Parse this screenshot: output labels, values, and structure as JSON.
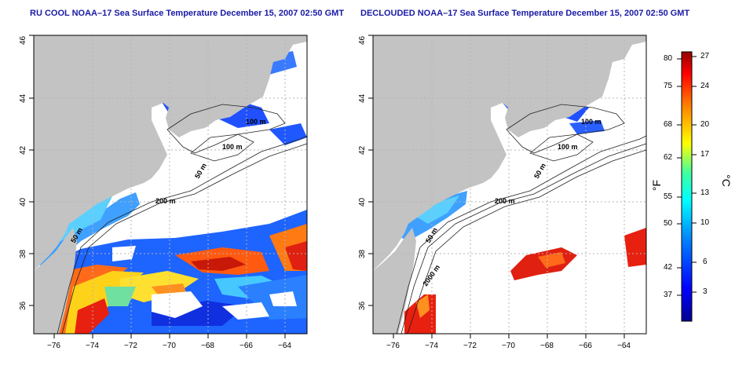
{
  "left_panel": {
    "title": "RU COOL NOAA–17 Sea Surface Temperature December 15, 2007 02:50 GMT",
    "contour_labels": [
      "100 m",
      "100 m",
      "50 m",
      "200 m",
      "50 m"
    ]
  },
  "right_panel": {
    "title": "DECLOUDED NOAA–17 Sea Surface Temperature December 15, 2007 02:50 GMT",
    "contour_labels": [
      "100 m",
      "100 m",
      "50 m",
      "200 m",
      "50 m",
      "2000 m"
    ]
  },
  "axes": {
    "x_ticks": [
      "−76",
      "−74",
      "−72",
      "−70",
      "−68",
      "−66",
      "−64"
    ],
    "y_ticks": [
      "36",
      "38",
      "40",
      "42",
      "44",
      "46"
    ]
  },
  "colorbar": {
    "unit_f": "°F",
    "unit_c": "°C",
    "f_ticks": [
      "80",
      "75",
      "68",
      "62",
      "55",
      "50",
      "42",
      "37"
    ],
    "c_ticks": [
      "27",
      "24",
      "20",
      "17",
      "13",
      "10",
      "6",
      "3"
    ]
  },
  "colors": {
    "land": "#c3c3c3",
    "title": "#1a1aa6",
    "grid": "#b4b4b4"
  }
}
